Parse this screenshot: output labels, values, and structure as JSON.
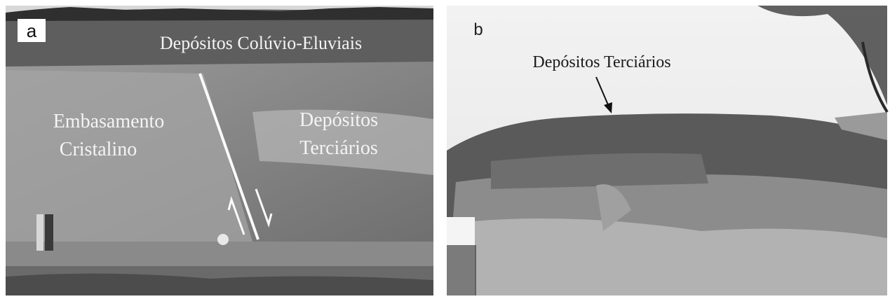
{
  "panels": [
    {
      "label": "a",
      "annotations": [
        {
          "lines": [
            "Depósitos Colúvio-Eluviais"
          ]
        },
        {
          "lines": [
            "Embasamento",
            "Cristalino"
          ]
        },
        {
          "lines": [
            "Depósitos",
            "Terciários"
          ]
        }
      ]
    },
    {
      "label": "b",
      "annotations": [
        {
          "lines": [
            "Depósitos Terciários"
          ]
        }
      ]
    }
  ]
}
